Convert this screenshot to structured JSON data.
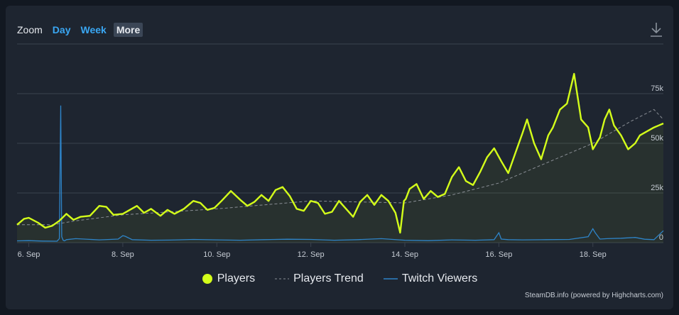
{
  "toolbar": {
    "zoom_label": "Zoom",
    "buttons": [
      "Day",
      "Week",
      "More"
    ],
    "active": "More"
  },
  "credits": "SteamDB.info (powered by Highcharts.com)",
  "colors": {
    "players": "#d4ff1a",
    "trend": "#8a8f96",
    "twitch": "#2e84c8",
    "grid": "#3a424e",
    "axis_text": "#c5cbd3"
  },
  "chart_data": {
    "type": "line",
    "x_tick_labels": [
      "6. Sep",
      "8. Sep",
      "10. Sep",
      "12. Sep",
      "14. Sep",
      "16. Sep",
      "18. Sep"
    ],
    "x_tick_days": [
      6,
      8,
      10,
      12,
      14,
      16,
      18
    ],
    "xlim": [
      5.75,
      19.5
    ],
    "y_tick_labels": [
      "0",
      "25k",
      "50k",
      "75k"
    ],
    "y_tick_values": [
      0,
      25000,
      50000,
      75000
    ],
    "ylim": [
      0,
      100000
    ],
    "grid": true,
    "legend_position": "bottom-center",
    "series": [
      {
        "name": "Players",
        "legend_label": "Players",
        "style": "line",
        "x": [
          5.75,
          5.9,
          6.0,
          6.2,
          6.35,
          6.5,
          6.65,
          6.8,
          6.95,
          7.1,
          7.3,
          7.5,
          7.65,
          7.8,
          8.0,
          8.15,
          8.3,
          8.45,
          8.6,
          8.8,
          8.95,
          9.1,
          9.3,
          9.5,
          9.65,
          9.8,
          9.95,
          10.1,
          10.3,
          10.5,
          10.65,
          10.8,
          10.95,
          11.1,
          11.25,
          11.4,
          11.55,
          11.7,
          11.85,
          12.0,
          12.15,
          12.3,
          12.45,
          12.6,
          12.75,
          12.9,
          13.05,
          13.2,
          13.35,
          13.5,
          13.65,
          13.8,
          13.9,
          13.98,
          14.02,
          14.1,
          14.25,
          14.4,
          14.55,
          14.7,
          14.85,
          15.0,
          15.15,
          15.3,
          15.45,
          15.6,
          15.75,
          15.9,
          16.05,
          16.2,
          16.35,
          16.5,
          16.6,
          16.75,
          16.9,
          17.05,
          17.15,
          17.3,
          17.45,
          17.6,
          17.75,
          17.9,
          18.0,
          18.15,
          18.25,
          18.35,
          18.45,
          18.6,
          18.75,
          18.9,
          19.0,
          19.15,
          19.3,
          19.4,
          19.5
        ],
        "y": [
          9000,
          12000,
          12500,
          10000,
          7500,
          8500,
          11000,
          14500,
          11500,
          13000,
          13500,
          18500,
          18000,
          14000,
          14500,
          16500,
          18500,
          15000,
          17000,
          13500,
          16500,
          14500,
          17000,
          21000,
          20000,
          16500,
          17500,
          21000,
          26000,
          21500,
          18500,
          20500,
          24000,
          21000,
          26500,
          28000,
          23500,
          17000,
          16000,
          21000,
          20000,
          14500,
          15500,
          21000,
          17000,
          13000,
          20500,
          24000,
          19000,
          24000,
          21000,
          15000,
          5000,
          21000,
          22000,
          27000,
          29500,
          22000,
          26000,
          23000,
          24500,
          33000,
          38000,
          31000,
          29000,
          35500,
          43000,
          47500,
          41000,
          35000,
          45000,
          55000,
          62000,
          50000,
          42000,
          54000,
          58000,
          67000,
          70000,
          85000,
          62000,
          58000,
          47000,
          53000,
          62000,
          67000,
          59000,
          54000,
          47000,
          50000,
          54000,
          56000,
          58000,
          59000,
          60000
        ]
      },
      {
        "name": "Players Trend",
        "legend_label": "Players Trend",
        "style": "dashed",
        "x": [
          5.75,
          6.5,
          7.0,
          8.0,
          9.0,
          10.0,
          11.0,
          12.0,
          13.0,
          14.0,
          15.0,
          16.0,
          17.0,
          18.0,
          18.8,
          19.3,
          19.5
        ],
        "y": [
          9000,
          9000,
          11000,
          14000,
          15500,
          17000,
          19000,
          21000,
          20500,
          20000,
          24000,
          30000,
          40000,
          50000,
          61000,
          67000,
          62000
        ]
      },
      {
        "name": "Twitch Viewers",
        "legend_label": "Twitch Viewers",
        "style": "line",
        "x": [
          5.75,
          6.0,
          6.3,
          6.6,
          6.65,
          6.68,
          6.7,
          6.73,
          6.76,
          6.8,
          7.0,
          7.5,
          7.9,
          8.0,
          8.05,
          8.2,
          8.6,
          9.0,
          9.5,
          10.0,
          10.5,
          11.0,
          11.5,
          12.0,
          12.5,
          13.0,
          13.5,
          14.0,
          14.5,
          15.0,
          15.5,
          15.9,
          16.0,
          16.05,
          16.2,
          16.5,
          17.0,
          17.5,
          17.9,
          18.0,
          18.05,
          18.15,
          18.3,
          18.6,
          18.9,
          19.1,
          19.3,
          19.5
        ],
        "y": [
          900,
          1000,
          800,
          700,
          2000,
          69000,
          3000,
          1200,
          900,
          1500,
          2000,
          1400,
          1800,
          3500,
          3200,
          1500,
          1200,
          1300,
          1600,
          1400,
          1200,
          1500,
          1700,
          1600,
          1200,
          1500,
          2000,
          1200,
          1000,
          1400,
          1200,
          1500,
          5000,
          1800,
          1500,
          1400,
          1500,
          1600,
          3000,
          7000,
          5000,
          1800,
          2000,
          2200,
          2600,
          1700,
          1500,
          6000
        ]
      }
    ]
  }
}
